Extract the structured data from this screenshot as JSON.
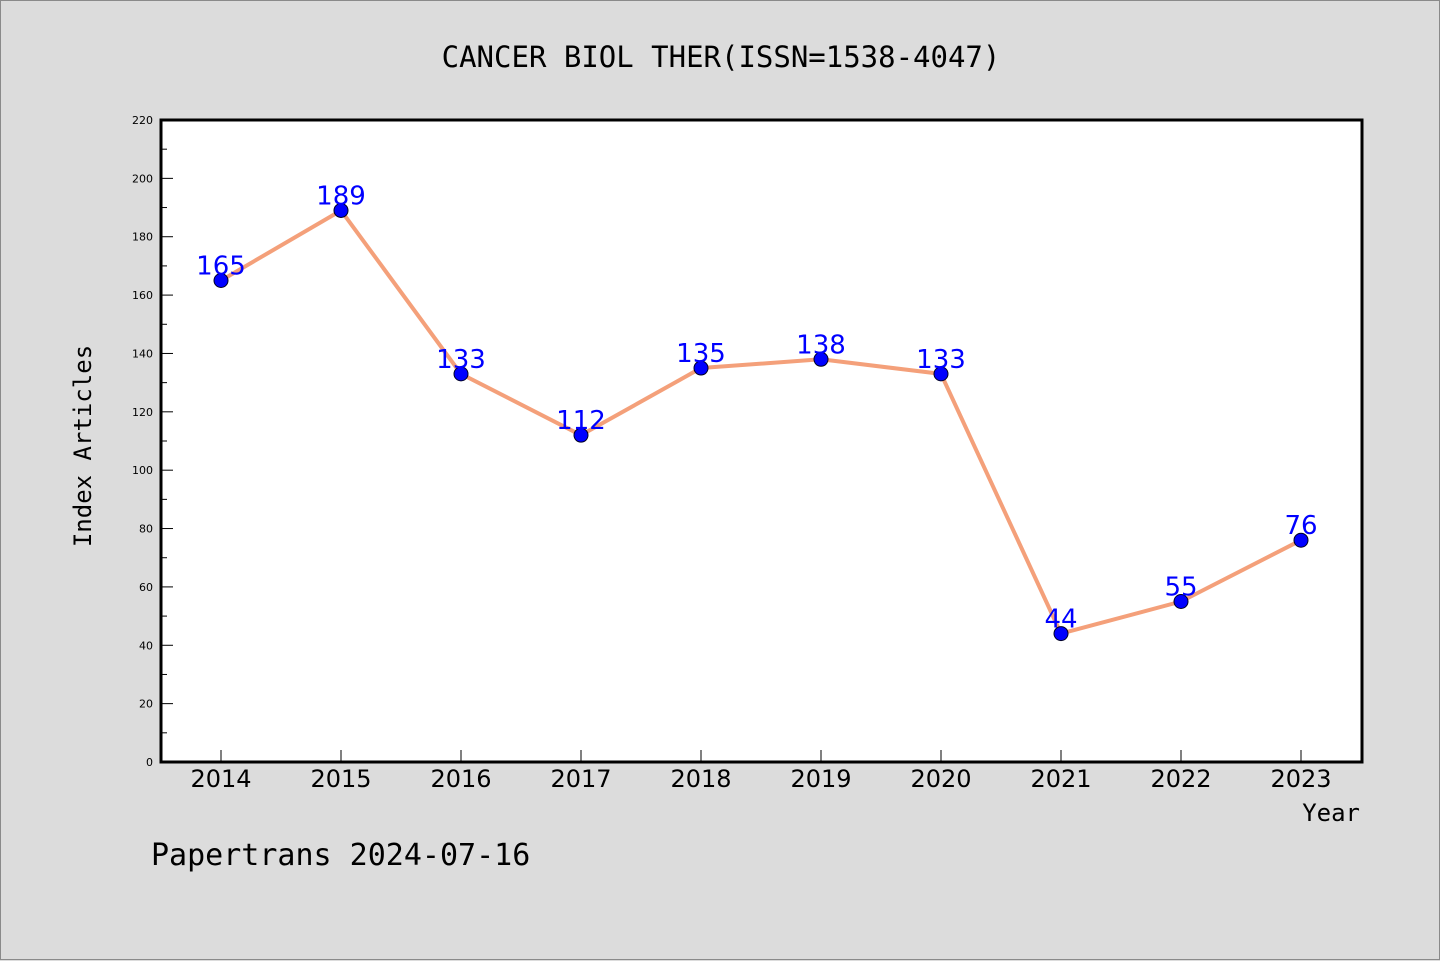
{
  "chart_data": {
    "type": "line",
    "title": "CANCER BIOL THER(ISSN=1538-4047)",
    "xlabel": "Year",
    "ylabel": "Index Articles",
    "categories": [
      "2014",
      "2015",
      "2016",
      "2017",
      "2018",
      "2019",
      "2020",
      "2021",
      "2022",
      "2023"
    ],
    "series": [
      {
        "values": [
          165,
          189,
          133,
          112,
          135,
          138,
          133,
          44,
          55,
          76
        ]
      }
    ],
    "ylim": [
      0,
      220
    ],
    "yticks": [
      0,
      20,
      40,
      60,
      80,
      100,
      120,
      140,
      160,
      180,
      200,
      220
    ],
    "grid": false,
    "line_color": "#f4a07a",
    "marker_color": "#0000ff",
    "data_label_color": "#0000ff"
  },
  "footer": {
    "watermark": "Papertrans 2024-07-16"
  }
}
